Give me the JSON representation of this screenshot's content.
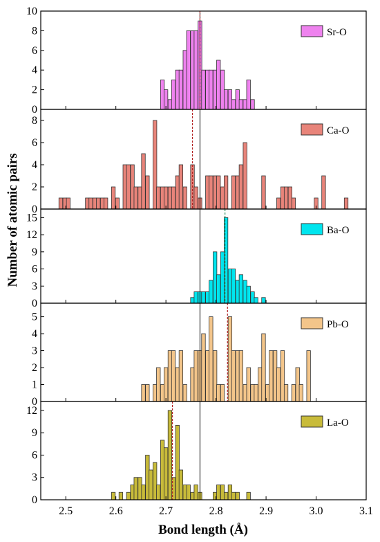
{
  "chart_data": {
    "type": "bar",
    "xlabel": "Bond length (Å)",
    "ylabel": "Number of atomic pairs",
    "xlim": [
      2.45,
      3.1
    ],
    "x_ticks": [
      "2.5",
      "2.6",
      "2.7",
      "2.8",
      "2.9",
      "3.0",
      "3.1"
    ],
    "bin_width": 0.0075,
    "reference_line_x": 2.768,
    "panels": [
      {
        "name": "Sr-O",
        "color": "#ee82ee",
        "mean": 2.768,
        "ylim": [
          0,
          10
        ],
        "y_ticks": [
          "0",
          "2",
          "4",
          "6",
          "8",
          "10"
        ],
        "x": [
          2.693,
          2.7,
          2.708,
          2.715,
          2.723,
          2.73,
          2.738,
          2.745,
          2.753,
          2.76,
          2.768,
          2.775,
          2.783,
          2.79,
          2.798,
          2.805,
          2.813,
          2.82,
          2.828,
          2.835,
          2.843,
          2.85,
          2.858,
          2.865,
          2.873
        ],
        "values": [
          3,
          2,
          1,
          3,
          4,
          4,
          6,
          8,
          8,
          8,
          9,
          4,
          4,
          4,
          4,
          5,
          4,
          2,
          2,
          1,
          2,
          1,
          1,
          3,
          1
        ]
      },
      {
        "name": "Ca-O",
        "color": "#e8847a",
        "mean": 2.753,
        "ylim": [
          0,
          9
        ],
        "y_ticks": [
          "0",
          "2",
          "4",
          "6",
          "8"
        ],
        "x": [
          2.49,
          2.498,
          2.505,
          2.543,
          2.55,
          2.558,
          2.565,
          2.573,
          2.58,
          2.595,
          2.603,
          2.618,
          2.625,
          2.633,
          2.64,
          2.648,
          2.655,
          2.663,
          2.678,
          2.685,
          2.693,
          2.7,
          2.708,
          2.715,
          2.723,
          2.73,
          2.738,
          2.753,
          2.76,
          2.768,
          2.783,
          2.79,
          2.798,
          2.805,
          2.813,
          2.82,
          2.835,
          2.843,
          2.85,
          2.858,
          2.895,
          2.925,
          2.933,
          2.94,
          2.948,
          2.955,
          3.0,
          3.015,
          3.06
        ],
        "values": [
          1,
          1,
          1,
          1,
          1,
          1,
          1,
          1,
          1,
          2,
          1,
          4,
          4,
          4,
          2,
          2,
          5,
          3,
          8,
          2,
          2,
          2,
          2,
          2,
          3,
          4,
          2,
          4,
          2,
          1,
          3,
          3,
          3,
          3,
          2,
          3,
          3,
          3,
          4,
          6,
          3,
          1,
          2,
          2,
          2,
          1,
          1,
          3,
          1
        ]
      },
      {
        "name": "Ba-O",
        "color": "#00e5ee",
        "mean": 2.818,
        "ylim": [
          0,
          16.5
        ],
        "y_ticks": [
          "0",
          "3",
          "6",
          "9",
          "12",
          "15"
        ],
        "x": [
          2.753,
          2.76,
          2.768,
          2.775,
          2.783,
          2.79,
          2.798,
          2.805,
          2.813,
          2.82,
          2.828,
          2.835,
          2.843,
          2.85,
          2.858,
          2.865,
          2.873,
          2.88,
          2.895
        ],
        "values": [
          1,
          2,
          2,
          2,
          2,
          4,
          9,
          5,
          9,
          15,
          6,
          6,
          4,
          5,
          4,
          3,
          2,
          1,
          1
        ]
      },
      {
        "name": "Pb-O",
        "color": "#f3c58a",
        "mean": 2.823,
        "ylim": [
          0,
          5.8
        ],
        "y_ticks": [
          "0",
          "1",
          "2",
          "3",
          "4",
          "5"
        ],
        "x": [
          2.655,
          2.663,
          2.678,
          2.685,
          2.693,
          2.7,
          2.708,
          2.715,
          2.723,
          2.73,
          2.738,
          2.753,
          2.76,
          2.768,
          2.775,
          2.783,
          2.79,
          2.798,
          2.805,
          2.813,
          2.828,
          2.835,
          2.843,
          2.85,
          2.858,
          2.865,
          2.873,
          2.88,
          2.888,
          2.895,
          2.903,
          2.91,
          2.918,
          2.925,
          2.933,
          2.94,
          2.955,
          2.963,
          2.97,
          2.985
        ],
        "values": [
          1,
          1,
          1,
          2,
          1,
          2,
          3,
          3,
          2,
          3,
          1,
          2,
          3,
          3,
          4,
          3,
          5,
          3,
          1,
          1,
          5,
          3,
          3,
          3,
          1,
          2,
          1,
          1,
          2,
          4,
          1,
          3,
          3,
          2,
          3,
          1,
          1,
          2,
          1,
          3
        ]
      },
      {
        "name": "La-O",
        "color": "#c8bb3a",
        "mean": 2.713,
        "ylim": [
          0,
          13.2
        ],
        "y_ticks": [
          "0",
          "3",
          "6",
          "9",
          "12"
        ],
        "x": [
          2.595,
          2.61,
          2.625,
          2.633,
          2.64,
          2.648,
          2.655,
          2.663,
          2.67,
          2.678,
          2.685,
          2.693,
          2.7,
          2.708,
          2.715,
          2.723,
          2.73,
          2.738,
          2.745,
          2.753,
          2.76,
          2.768,
          2.798,
          2.805,
          2.813,
          2.82,
          2.828,
          2.835,
          2.843,
          2.865
        ],
        "values": [
          1,
          1,
          1,
          2,
          3,
          3,
          2,
          6,
          4,
          5,
          2,
          8,
          7,
          12,
          3,
          10,
          4,
          2,
          2,
          1,
          2,
          1,
          1,
          2,
          2,
          1,
          2,
          1,
          1,
          1
        ]
      }
    ]
  }
}
